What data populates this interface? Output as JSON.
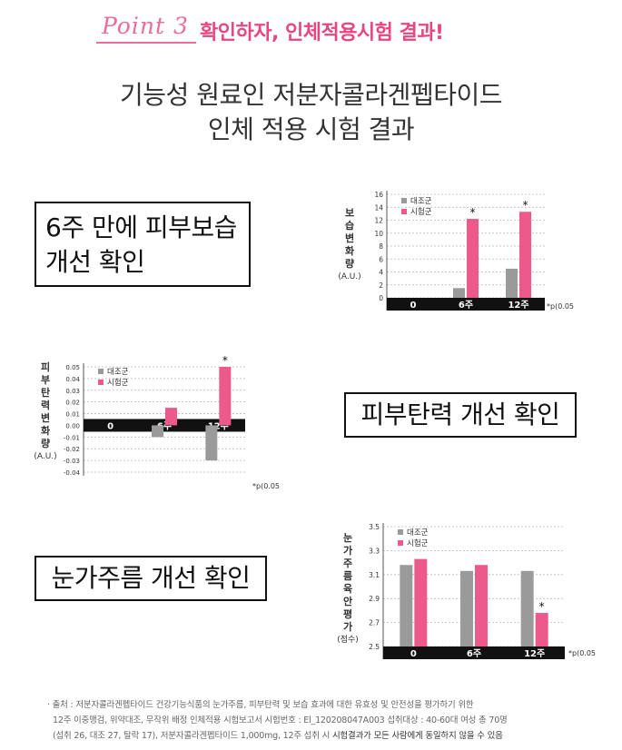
{
  "header": {
    "point_label": "Point 3",
    "title": "확인하자, 인체적용시험 결과!"
  },
  "main_title": {
    "line1": "기능성 원료인 저분자콜라겐펩타이드",
    "line2": "인체 적용 시험 결과"
  },
  "labels": {
    "moisture_line1": "6주 만에 피부보습",
    "moisture_line2": "개선 확인",
    "elasticity": "피부탄력 개선 확인",
    "wrinkle": "눈가주름 개선 확인"
  },
  "colors": {
    "control": "#9a9a9a",
    "test": "#ec5a8b",
    "accent": "#e74683",
    "axis_band": "#111111"
  },
  "chart_data": [
    {
      "type": "bar",
      "ylabel_chars": [
        "보",
        "습",
        "변",
        "화",
        "량"
      ],
      "ylabel_unit": "(A.U.)",
      "categories": [
        "0",
        "6주",
        "12주"
      ],
      "series": [
        {
          "name": "대조군",
          "values": [
            0,
            1.5,
            4.5
          ]
        },
        {
          "name": "시험군",
          "values": [
            0,
            12.2,
            13.3
          ]
        }
      ],
      "ylim": [
        0,
        16
      ],
      "yticks": [
        "0",
        "2",
        "4",
        "6",
        "8",
        "10",
        "12",
        "14",
        "16"
      ],
      "significance": [
        null,
        "*",
        "*"
      ],
      "note": "*p(0.05",
      "legend": "top-left",
      "grid": true
    },
    {
      "type": "bar",
      "ylabel_chars": [
        "피",
        "부",
        "탄",
        "력",
        "변",
        "화",
        "량"
      ],
      "ylabel_unit": "(A.U.)",
      "categories": [
        "0",
        "6주",
        "12주"
      ],
      "series": [
        {
          "name": "대조군",
          "values": [
            0,
            -0.01,
            -0.03
          ]
        },
        {
          "name": "시험군",
          "values": [
            0,
            0.015,
            0.05
          ]
        }
      ],
      "ylim": [
        -0.04,
        0.05
      ],
      "yticks": [
        "0.05",
        "0.04",
        "0.03",
        "0.02",
        "0.01",
        "0.00",
        "-0.01",
        "-0.02",
        "-0.03",
        "-0.04"
      ],
      "significance": [
        null,
        null,
        "*"
      ],
      "note": "*p(0.05",
      "legend": "top-left",
      "grid": true
    },
    {
      "type": "bar",
      "ylabel_chars": [
        "눈",
        "가",
        "주",
        "름",
        "육",
        "안",
        "평",
        "가"
      ],
      "ylabel_unit": "(점수)",
      "categories": [
        "0",
        "6주",
        "12주"
      ],
      "series": [
        {
          "name": "대조군",
          "values": [
            3.18,
            3.13,
            3.13
          ]
        },
        {
          "name": "시험군",
          "values": [
            3.23,
            3.18,
            2.78
          ]
        }
      ],
      "ylim": [
        2.5,
        3.5
      ],
      "yticks": [
        "3.5",
        "3.3",
        "3.1",
        "2.9",
        "2.7",
        "2.5"
      ],
      "significance": [
        null,
        null,
        "*"
      ],
      "note": "*p(0.05",
      "legend": "top-left",
      "grid": true
    }
  ],
  "footnote": {
    "line1": "· 출처 : 저분자콜라겐펩타이드 건강기능식품의 눈가주름, 피부탄력 및 보습 효과에 대한 유효성 및 안전성을 평가하기 위한",
    "line2": "12주 이중맹검, 위약대조, 무작위 배정     인체적용 시험보고서 시험번호 : El_120208047A003     섭취대상 : 40-60대 여성 총 70명",
    "line3a": "(섭취 26, 대조 27, 탈락 17), 저분자콜라겐펩타이드 1,000mg, 12주 섭취 시 ",
    "line3b": "시험결과가 모든 사람에게 동일하지 않을 수 있음"
  }
}
